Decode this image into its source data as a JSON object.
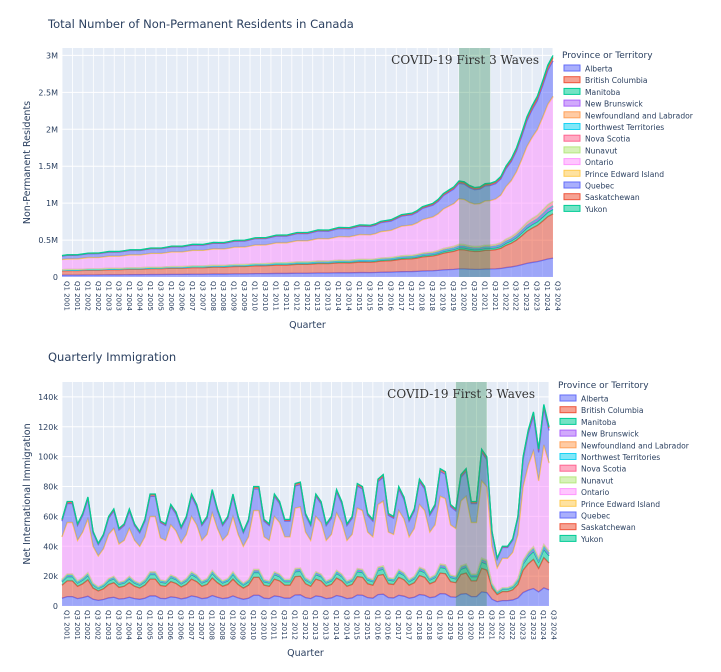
{
  "colors": {
    "Alberta": "#636efa",
    "British Columbia": "#ef553b",
    "Manitoba": "#00cc96",
    "New Brunswick": "#ab63fa",
    "Newfoundland and Labrador": "#ffa15a",
    "Northwest Territories": "#19d3f3",
    "Nova Scotia": "#ff6692",
    "Nunavut": "#b6e880",
    "Ontario": "#ff97ff",
    "Prince Edward Island": "#fecb52",
    "Quebec": "#636efa",
    "Saskatchewan": "#ef553b",
    "Yukon": "#00cc96",
    "covid_band": "#2e8b57",
    "plot_bg": "#e5ecf6"
  },
  "legend_order": [
    "Alberta",
    "British Columbia",
    "Manitoba",
    "New Brunswick",
    "Newfoundland and Labrador",
    "Northwest Territories",
    "Nova Scotia",
    "Nunavut",
    "Ontario",
    "Prince Edward Island",
    "Quebec",
    "Saskatchewan",
    "Yukon"
  ],
  "chart_data": [
    {
      "type": "area",
      "title": "Total Number of Non-Permanent Residents in Canada",
      "xlabel": "Quarter",
      "ylabel": "Non-Permanent Residents",
      "legend_title": "Province or Territory",
      "legend_position": "right",
      "annotation": "COVID-19 First 3 Waves",
      "covid_band": [
        "Q1 2020",
        "Q3 2021"
      ],
      "ylim": [
        0,
        3100000
      ],
      "yticks": [
        0,
        500000,
        1000000,
        1500000,
        2000000,
        2500000,
        3000000
      ],
      "ytick_labels": [
        "0",
        "0.5M",
        "1M",
        "1.5M",
        "2M",
        "2.5M",
        "3M"
      ],
      "x_start": "Q1 2001",
      "x_end": "Q3 2024",
      "xtick_labels": [
        "Q1 2001",
        "Q3 2001",
        "Q1 2002",
        "Q3 2002",
        "Q1 2003",
        "Q3 2003",
        "Q1 2004",
        "Q3 2004",
        "Q1 2005",
        "Q3 2005",
        "Q1 2006",
        "Q3 2006",
        "Q1 2007",
        "Q3 2007",
        "Q1 2008",
        "Q3 2008",
        "Q1 2009",
        "Q3 2009",
        "Q1 2010",
        "Q3 2010",
        "Q1 2011",
        "Q3 2011",
        "Q1 2012",
        "Q3 2012",
        "Q1 2013",
        "Q3 2013",
        "Q1 2014",
        "Q3 2014",
        "Q1 2015",
        "Q3 2015",
        "Q1 2016",
        "Q3 2016",
        "Q1 2017",
        "Q3 2017",
        "Q1 2018",
        "Q3 2018",
        "Q1 2019",
        "Q3 2019",
        "Q1 2020",
        "Q3 2020",
        "Q1 2021",
        "Q3 2021",
        "Q1 2022",
        "Q3 2022",
        "Q1 2023",
        "Q3 2023",
        "Q1 2024",
        "Q3 2024"
      ],
      "total_keyframes": [
        [
          "Q1 2001",
          290000
        ],
        [
          "Q1 2005",
          380000
        ],
        [
          "Q1 2009",
          480000
        ],
        [
          "Q1 2013",
          620000
        ],
        [
          "Q1 2016",
          720000
        ],
        [
          "Q1 2018",
          900000
        ],
        [
          "Q1 2019",
          1050000
        ],
        [
          "Q1 2020",
          1300000
        ],
        [
          "Q3 2020",
          1240000
        ],
        [
          "Q1 2021",
          1220000
        ],
        [
          "Q3 2021",
          1270000
        ],
        [
          "Q1 2022",
          1360000
        ],
        [
          "Q3 2022",
          1600000
        ],
        [
          "Q1 2023",
          1950000
        ],
        [
          "Q3 2023",
          2320000
        ],
        [
          "Q1 2024",
          2650000
        ],
        [
          "Q3 2024",
          3000000
        ]
      ],
      "province_shares": {
        "Alberta": 0.085,
        "British Columbia": 0.2,
        "Manitoba": 0.02,
        "New Brunswick": 0.01,
        "Newfoundland and Labrador": 0.005,
        "Northwest Territories": 0.001,
        "Nova Scotia": 0.02,
        "Nunavut": 0.0005,
        "Ontario": 0.47,
        "Prince Edward Island": 0.004,
        "Quebec": 0.16,
        "Saskatchewan": 0.015,
        "Yukon": 0.0095
      },
      "seasonal_amplitude": 0.015
    },
    {
      "type": "area",
      "title": "Quarterly Immigration",
      "xlabel": "Quarter",
      "ylabel": "Net International Immigration",
      "legend_title": "Province or Territory",
      "legend_position": "right",
      "annotation": "COVID-19 First 3 Waves",
      "covid_band": [
        "Q1 2020",
        "Q3 2021"
      ],
      "ylim": [
        0,
        150000
      ],
      "yticks": [
        0,
        20000,
        40000,
        60000,
        80000,
        100000,
        120000,
        140000
      ],
      "ytick_labels": [
        "0",
        "20k",
        "40k",
        "60k",
        "80k",
        "100k",
        "120k",
        "140k"
      ],
      "x_start": "Q1 2001",
      "x_end": "Q3 2024",
      "xtick_labels": [
        "Q1 2001",
        "Q3 2001",
        "Q1 2002",
        "Q3 2002",
        "Q1 2003",
        "Q3 2003",
        "Q1 2004",
        "Q3 2004",
        "Q1 2005",
        "Q3 2005",
        "Q1 2006",
        "Q3 2006",
        "Q1 2007",
        "Q3 2007",
        "Q1 2008",
        "Q3 2008",
        "Q1 2009",
        "Q3 2009",
        "Q1 2010",
        "Q3 2010",
        "Q1 2011",
        "Q3 2011",
        "Q1 2012",
        "Q3 2012",
        "Q1 2013",
        "Q3 2013",
        "Q1 2014",
        "Q3 2014",
        "Q1 2015",
        "Q3 2015",
        "Q1 2016",
        "Q3 2016",
        "Q1 2017",
        "Q3 2017",
        "Q1 2018",
        "Q3 2018",
        "Q1 2019",
        "Q3 2019",
        "Q1 2020",
        "Q3 2020",
        "Q1 2021",
        "Q3 2021",
        "Q1 2022",
        "Q3 2022",
        "Q1 2023",
        "Q3 2023",
        "Q1 2024",
        "Q3 2024"
      ],
      "totals": [
        58000,
        70000,
        70000,
        55000,
        62000,
        73000,
        50000,
        42000,
        48000,
        60000,
        65000,
        52000,
        55000,
        65000,
        55000,
        50000,
        58000,
        75000,
        75000,
        57000,
        55000,
        68000,
        63000,
        53000,
        60000,
        75000,
        68000,
        55000,
        60000,
        78000,
        65000,
        55000,
        60000,
        75000,
        60000,
        50000,
        58000,
        80000,
        80000,
        58000,
        55000,
        75000,
        70000,
        58000,
        58000,
        82000,
        83000,
        62000,
        55000,
        75000,
        70000,
        55000,
        60000,
        78000,
        70000,
        55000,
        60000,
        82000,
        80000,
        62000,
        58000,
        85000,
        88000,
        62000,
        60000,
        80000,
        73000,
        58000,
        65000,
        85000,
        80000,
        62000,
        68000,
        92000,
        90000,
        68000,
        65000,
        88000,
        92000,
        70000,
        70000,
        105000,
        100000,
        50000,
        32000,
        40000,
        40000,
        45000,
        60000,
        100000,
        118000,
        130000,
        105000,
        135000,
        120000,
        100000,
        80000,
        140000,
        130000,
        110000,
        105000,
        130000,
        125000,
        115000,
        95000,
        125000,
        130000,
        110000,
        100000,
        128000,
        135000,
        125000,
        110000
      ],
      "province_shares": {
        "Alberta": 0.09,
        "British Columbia": 0.15,
        "Manitoba": 0.04,
        "New Brunswick": 0.008,
        "Newfoundland and Labrador": 0.005,
        "Northwest Territories": 0.001,
        "Nova Scotia": 0.012,
        "Nunavut": 0.0005,
        "Ontario": 0.49,
        "Prince Edward Island": 0.003,
        "Quebec": 0.18,
        "Saskatchewan": 0.015,
        "Yukon": 0.0055
      }
    }
  ]
}
